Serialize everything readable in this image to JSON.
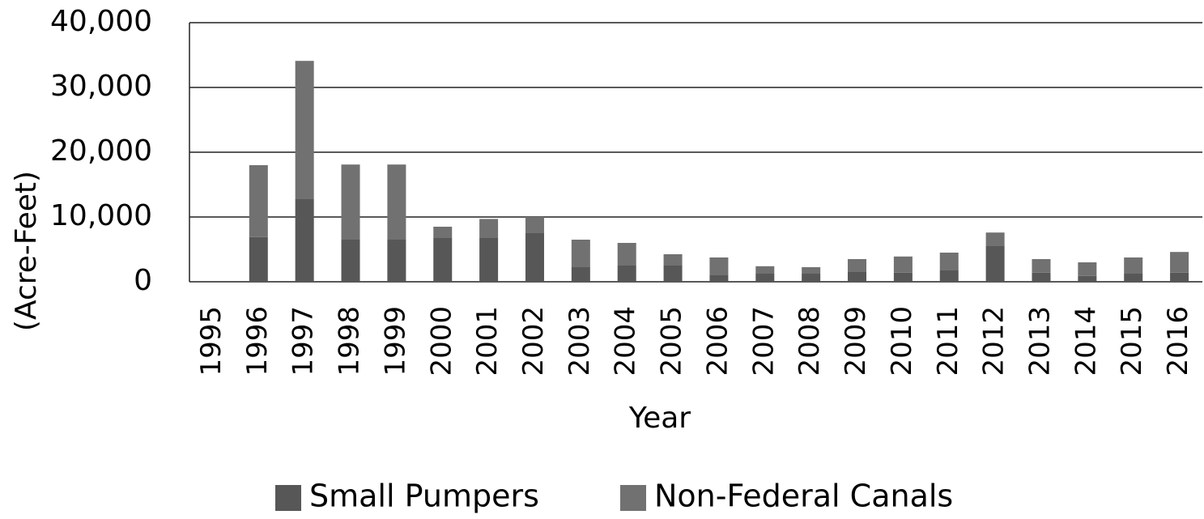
{
  "chart_data": {
    "type": "stacked_bar",
    "y_label": "(Acre-Feet)",
    "x_label": "Year",
    "categories": [
      "1995",
      "1996",
      "1997",
      "1998",
      "1999",
      "2000",
      "2001",
      "2002",
      "2003",
      "2004",
      "2005",
      "2006",
      "2007",
      "2008",
      "2009",
      "2010",
      "2011",
      "2012",
      "2013",
      "2014",
      "2015",
      "2016"
    ],
    "series": [
      {
        "name": "Small Pumpers",
        "color": "#575757",
        "values": [
          0,
          6900,
          12750,
          6600,
          6600,
          6750,
          6750,
          7500,
          2250,
          2500,
          2500,
          1100,
          1250,
          1250,
          1600,
          1400,
          1750,
          5600,
          1400,
          900,
          1250,
          1400
        ]
      },
      {
        "name": "Non-Federal Canals",
        "color": "#717171",
        "values": [
          0,
          11100,
          21350,
          11500,
          11500,
          1750,
          2950,
          2500,
          4250,
          3500,
          1750,
          2650,
          1150,
          1000,
          1900,
          2500,
          2750,
          2000,
          2100,
          2100,
          2500,
          3200
        ]
      }
    ],
    "ylim": [
      0,
      40000
    ],
    "yticks": [
      0,
      {
        "value": 10000,
        "label": "10,000"
      },
      {
        "value": 20000,
        "label": "20,000"
      },
      {
        "value": 30000,
        "label": "30,000"
      },
      {
        "value": 40000,
        "label": "40,000"
      }
    ],
    "grid": true,
    "legend": "bottom"
  }
}
